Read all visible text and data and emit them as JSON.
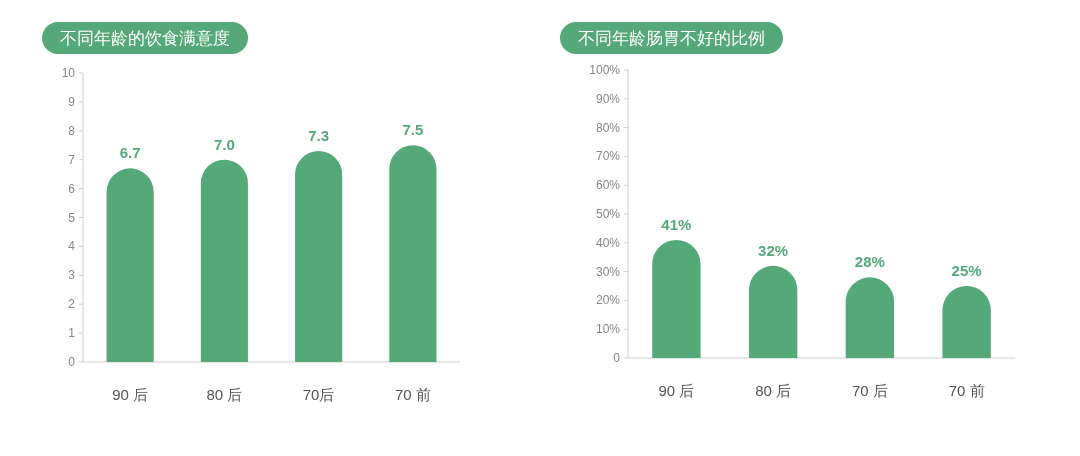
{
  "chart_data": [
    {
      "type": "bar",
      "title": "不同年龄的饮食满意度",
      "categories": [
        "90 后",
        "80 后",
        "70后",
        "70 前"
      ],
      "values": [
        6.7,
        7.0,
        7.3,
        7.5
      ],
      "color": "#55a878",
      "value_labels": [
        "6.7",
        "7.0",
        "7.3",
        "7.5"
      ],
      "ylim": [
        0,
        10
      ],
      "yticks": [
        0,
        1,
        2,
        3,
        4,
        5,
        6,
        7,
        8,
        9,
        10
      ]
    },
    {
      "type": "bar",
      "title": "不同年龄肠胃不好的比例",
      "categories": [
        "90 后",
        "80 后",
        "70 后",
        "70 前"
      ],
      "values": [
        41,
        32,
        28,
        25
      ],
      "color": "#55a878",
      "value_labels": [
        "41%",
        "32%",
        "28%",
        "25%"
      ],
      "ylim": [
        0,
        100
      ],
      "yticks": [
        0,
        {
          "value": 10,
          "label": "10%"
        },
        {
          "value": 20,
          "label": "20%"
        },
        {
          "value": 30,
          "label": "30%"
        },
        {
          "value": 40,
          "label": "40%"
        },
        {
          "value": 50,
          "label": "50%"
        },
        {
          "value": 60,
          "label": "60%"
        },
        {
          "value": 70,
          "label": "70%"
        },
        {
          "value": 80,
          "label": "80%"
        },
        {
          "value": 90,
          "label": "90%"
        },
        {
          "value": 100,
          "label": "100%"
        }
      ]
    }
  ]
}
